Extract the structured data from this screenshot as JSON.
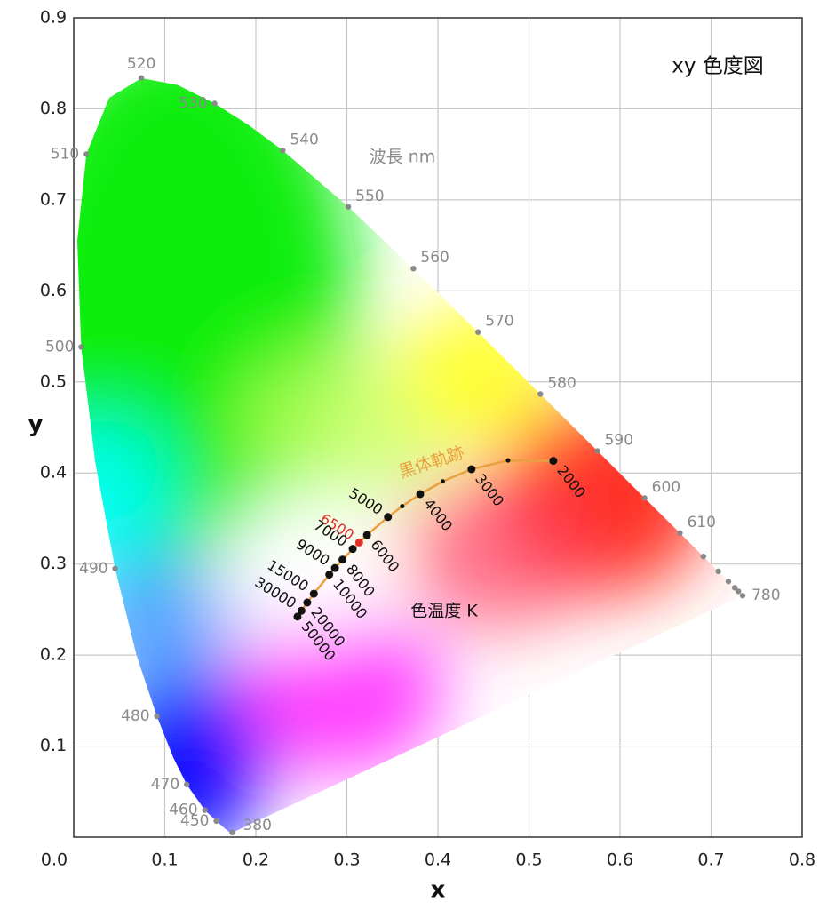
{
  "chart_data": {
    "type": "scatter",
    "title": "xy 色度図",
    "xlabel": "x",
    "ylabel": "y",
    "wavelength_label": "波長 nm",
    "locus_label": "黒体軌跡",
    "temperature_label": "色温度 K",
    "xlim": [
      0,
      0.8
    ],
    "ylim": [
      0,
      0.9
    ],
    "xticks": [
      {
        "value": 0,
        "label": "0.0"
      },
      0.1,
      0.2,
      0.3,
      0.4,
      0.5,
      0.6,
      0.7,
      0.8
    ],
    "yticks": [
      0.1,
      0.2,
      0.3,
      0.4,
      0.5,
      0.6,
      0.7,
      0.8,
      0.9
    ],
    "grid": true,
    "gamut": {
      "x": [
        0.1741,
        0.1733,
        0.1726,
        0.1714,
        0.1689,
        0.1644,
        0.1566,
        0.144,
        0.1241,
        0.1096,
        0.0913,
        0.0687,
        0.0454,
        0.0235,
        0.0082,
        0.0039,
        0.0139,
        0.0389,
        0.0743,
        0.1142,
        0.1547,
        0.1929,
        0.2296,
        0.3016,
        0.3731,
        0.4441,
        0.5125,
        0.5752,
        0.627,
        0.6658,
        0.6915,
        0.7079,
        0.719,
        0.726,
        0.73,
        0.7347
      ],
      "values": [
        0.005,
        0.0048,
        0.0048,
        0.0051,
        0.0069,
        0.0109,
        0.0177,
        0.0297,
        0.0578,
        0.0868,
        0.1327,
        0.2007,
        0.295,
        0.4127,
        0.5384,
        0.6548,
        0.7502,
        0.812,
        0.8338,
        0.8262,
        0.8059,
        0.7816,
        0.7543,
        0.6923,
        0.6245,
        0.5547,
        0.4866,
        0.4242,
        0.3725,
        0.334,
        0.3083,
        0.292,
        0.2809,
        0.274,
        0.27,
        0.2653
      ]
    },
    "series": [
      {
        "color": "#8a8a8a",
        "x": [
          0.1741,
          0.1566,
          0.144,
          0.1241,
          0.0913,
          0.0454,
          0.0082,
          0.0139,
          0.0743,
          0.1547,
          0.2296,
          0.3016,
          0.3731,
          0.4441,
          0.5125,
          0.5752,
          0.627,
          0.6658,
          0.6915,
          0.7079,
          0.719,
          0.726,
          0.73,
          0.7347
        ],
        "values": [
          0.005,
          0.0177,
          0.0297,
          0.0578,
          0.1327,
          0.295,
          0.5384,
          0.7502,
          0.8338,
          0.8059,
          0.7543,
          0.6923,
          0.6245,
          0.5547,
          0.4866,
          0.4242,
          0.3725,
          0.334,
          0.3083,
          0.292,
          0.2809,
          0.274,
          0.27,
          0.2653
        ],
        "labels": [
          "380",
          "450",
          "460",
          "470",
          "480",
          "490",
          "500",
          "510",
          "520",
          "530",
          "540",
          "550",
          "560",
          "570",
          "580",
          "590",
          "600",
          "610",
          null,
          null,
          null,
          null,
          null,
          "780"
        ]
      },
      {
        "color": "#111111",
        "line_color": "#e8a040",
        "x": [
          0.5267,
          0.477,
          0.4369,
          0.4053,
          0.3805,
          0.3608,
          0.3451,
          0.3221,
          0.3135,
          0.3064,
          0.2952,
          0.2869,
          0.2807,
          0.2637,
          0.2565,
          0.2501,
          0.2458
        ],
        "values": [
          0.4133,
          0.4137,
          0.4041,
          0.3907,
          0.3768,
          0.3635,
          0.3516,
          0.3318,
          0.3237,
          0.3166,
          0.3048,
          0.2956,
          0.2884,
          0.2674,
          0.2577,
          0.2487,
          0.2422
        ],
        "labels": [
          "2000",
          null,
          "3000",
          null,
          "4000",
          null,
          "5000",
          "6000",
          "6500",
          "7000",
          "8000",
          "9000",
          "10000",
          "15000",
          "20000",
          "30000",
          "50000"
        ],
        "point_colors": [
          "#111111",
          "#111111",
          "#111111",
          "#111111",
          "#111111",
          "#111111",
          "#111111",
          "#111111",
          "#e0302a",
          "#111111",
          "#111111",
          "#111111",
          "#111111",
          "#111111",
          "#111111",
          "#111111",
          "#111111"
        ]
      }
    ]
  }
}
